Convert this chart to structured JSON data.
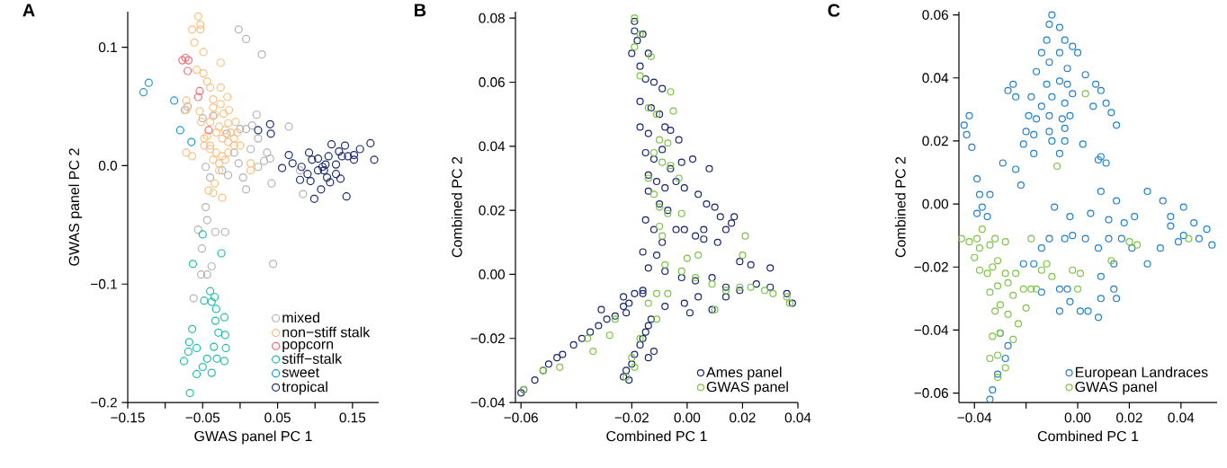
{
  "chart_data": [
    {
      "type": "scatter",
      "title": "A",
      "xlabel": "GWAS panel PC 1",
      "ylabel": "GWAS panel PC 2",
      "marker": "circle",
      "legend": "bottom right",
      "xlim": [
        -0.15,
        0.185
      ],
      "ylim": [
        -0.2,
        0.13
      ],
      "xticks": [
        {
          "value": -0.15,
          "label": "−0.15"
        },
        {
          "value": -0.1,
          "label": null
        },
        {
          "value": -0.05,
          "label": "−0.05"
        },
        {
          "value": 0,
          "label": null
        },
        {
          "value": 0.05,
          "label": "0.05"
        },
        {
          "value": 0.1,
          "label": null
        },
        {
          "value": 0.15,
          "label": "0.15"
        }
      ],
      "yticks": [
        {
          "value": -0.2,
          "label": "−0.2"
        },
        {
          "value": -0.1,
          "label": "−0.1"
        },
        {
          "value": 0,
          "label": "0.0"
        },
        {
          "value": 0.1,
          "label": "0.1"
        }
      ],
      "series": [
        {
          "name": "mixed",
          "color": "#b3b3b3",
          "x": [
            -0.002,
            0.008,
            0.029,
            -0.07,
            -0.074,
            -0.05,
            -0.036,
            0.022,
            0.0,
            0.008,
            0.016,
            -0.018,
            0.024,
            0.065,
            0.036,
            0.04,
            0.024,
            0.032,
            -0.046,
            -0.04,
            -0.024,
            -0.016,
            -0.002,
            0.004,
            0.008,
            0.014,
            0.042,
            0.084,
            -0.046,
            -0.044,
            -0.056,
            -0.033,
            -0.02,
            -0.051,
            -0.038,
            -0.044,
            -0.052,
            -0.062,
            0.044,
            -0.008,
            0.08
          ],
          "values": [
            0.115,
            0.107,
            0.094,
            0.05,
            0.047,
            0.04,
            0.042,
            0.043,
            0.031,
            0.031,
            0.034,
            0.027,
            0.023,
            0.033,
            0.011,
            0.006,
            -0.001,
            0.004,
            -0.001,
            -0.01,
            -0.004,
            -0.008,
            0.002,
            -0.01,
            -0.02,
            0.014,
            -0.015,
            -0.024,
            -0.035,
            -0.046,
            -0.054,
            -0.056,
            -0.056,
            -0.07,
            -0.085,
            -0.092,
            -0.092,
            -0.112,
            -0.083,
            0.011,
            -0.004
          ]
        },
        {
          "name": "non−stiff stalk",
          "color": "#fdbf80",
          "x": [
            -0.056,
            -0.053,
            -0.064,
            -0.053,
            -0.061,
            -0.049,
            -0.026,
            -0.058,
            -0.049,
            -0.04,
            -0.026,
            -0.017,
            -0.072,
            -0.036,
            -0.026,
            -0.015,
            -0.072,
            -0.054,
            -0.036,
            -0.034,
            -0.022,
            -0.052,
            -0.04,
            -0.028,
            -0.016,
            -0.006,
            -0.044,
            -0.032,
            -0.02,
            -0.012,
            -0.048,
            -0.04,
            -0.024,
            -0.016,
            -0.008,
            -0.072,
            -0.064,
            -0.048,
            -0.04,
            -0.032,
            -0.024,
            -0.016,
            -0.008,
            -0.036,
            -0.028,
            -0.02,
            0.014,
            0.014,
            -0.028,
            -0.034,
            -0.042,
            -0.036,
            -0.024,
            -0.044,
            0.0,
            -0.004
          ],
          "values": [
            0.126,
            0.119,
            0.115,
            0.115,
            0.104,
            0.096,
            0.087,
            0.081,
            0.078,
            0.066,
            0.066,
            0.058,
            0.055,
            0.056,
            0.052,
            0.047,
            0.047,
            0.046,
            0.049,
            0.043,
            0.044,
            0.037,
            0.037,
            0.033,
            0.036,
            0.037,
            0.025,
            0.028,
            0.03,
            0.028,
            0.023,
            0.017,
            0.023,
            0.02,
            0.023,
            0.011,
            0.008,
            0.017,
            0.014,
            0.011,
            0.008,
            0.011,
            0.017,
            0.005,
            0.002,
            0.005,
            0.002,
            -0.004,
            -0.004,
            -0.015,
            -0.021,
            -0.023,
            -0.027,
            0.071,
            0.017,
            0.028
          ]
        },
        {
          "name": "popcorn",
          "color": "#f46d75",
          "x": [
            -0.077,
            -0.073,
            -0.069,
            -0.07,
            -0.054,
            -0.056,
            -0.042
          ],
          "values": [
            0.089,
            0.091,
            0.089,
            0.08,
            0.063,
            0.058,
            0.03
          ]
        },
        {
          "name": "stiff−stalk",
          "color": "#1fbfae",
          "x": [
            -0.05,
            -0.025,
            -0.063,
            -0.04,
            -0.034,
            -0.048,
            -0.038,
            -0.032,
            -0.021,
            -0.033,
            -0.064,
            -0.029,
            -0.02,
            -0.068,
            -0.019,
            -0.035,
            -0.069,
            -0.058,
            -0.075,
            -0.044,
            -0.031,
            -0.021,
            -0.05,
            -0.058,
            -0.038,
            -0.067
          ],
          "values": [
            -0.058,
            -0.074,
            -0.083,
            -0.106,
            -0.111,
            -0.114,
            -0.115,
            -0.121,
            -0.128,
            -0.131,
            -0.138,
            -0.141,
            -0.143,
            -0.149,
            -0.154,
            -0.153,
            -0.157,
            -0.154,
            -0.165,
            -0.163,
            -0.163,
            -0.165,
            -0.17,
            -0.176,
            -0.175,
            -0.192
          ]
        },
        {
          "name": "sweet",
          "color": "#1a9ad6",
          "x": [
            -0.129,
            -0.122,
            -0.088,
            -0.08,
            -0.065
          ],
          "values": [
            0.062,
            0.07,
            0.055,
            0.03,
            0.02
          ]
        },
        {
          "name": "tropical",
          "color": "#1a2a72",
          "x": [
            0.024,
            0.04,
            0.041,
            0.056,
            0.065,
            0.07,
            0.08,
            0.082,
            0.092,
            0.094,
            0.096,
            0.099,
            0.104,
            0.108,
            0.112,
            0.114,
            0.116,
            0.118,
            0.12,
            0.122,
            0.128,
            0.132,
            0.134,
            0.136,
            0.14,
            0.142,
            0.144,
            0.152,
            0.16,
            0.174,
            0.179,
            0.09,
            0.104,
            0.11,
            0.128,
            0.152
          ],
          "values": [
            0.03,
            0.035,
            0.027,
            -0.002,
            0.009,
            0.002,
            -0.012,
            -0.001,
            0.011,
            -0.013,
            0.005,
            -0.028,
            0.006,
            -0.02,
            -0.004,
            0.001,
            -0.01,
            0.008,
            -0.014,
            0.018,
            0.001,
            0.012,
            -0.011,
            0.008,
            0.017,
            -0.026,
            0.008,
            0.005,
            0.014,
            0.019,
            0.005,
            -0.007,
            -0.004,
            -0.001,
            -0.007,
            0.009
          ]
        }
      ]
    },
    {
      "type": "scatter",
      "title": "B",
      "xlabel": "Combined PC 1",
      "ylabel": "Combined PC 2",
      "marker": "circle",
      "legend": "bottom right",
      "xlim": [
        -0.062,
        0.04
      ],
      "ylim": [
        -0.04,
        0.082
      ],
      "xticks": [
        {
          "value": -0.06,
          "label": "−0.06"
        },
        {
          "value": -0.04,
          "label": null
        },
        {
          "value": -0.02,
          "label": "−0.02"
        },
        {
          "value": 0,
          "label": "0.00"
        },
        {
          "value": 0.02,
          "label": "0.02"
        },
        {
          "value": 0.04,
          "label": "0.04"
        }
      ],
      "yticks": [
        {
          "value": -0.04,
          "label": "−0.04"
        },
        {
          "value": -0.02,
          "label": "−0.02"
        },
        {
          "value": 0,
          "label": "0.00"
        },
        {
          "value": 0.02,
          "label": "0.02"
        },
        {
          "value": 0.04,
          "label": "0.04"
        },
        {
          "value": 0.06,
          "label": "0.06"
        },
        {
          "value": 0.08,
          "label": "0.08"
        }
      ],
      "series": [
        {
          "name": "Ames panel",
          "color": "#14246e",
          "x": [
            -0.06,
            -0.059,
            -0.055,
            -0.052,
            -0.05,
            -0.047,
            -0.045,
            -0.041,
            -0.038,
            -0.035,
            -0.032,
            -0.029,
            -0.026,
            -0.023,
            -0.021,
            -0.019,
            -0.016,
            -0.031,
            -0.023,
            -0.022,
            -0.023,
            -0.022,
            -0.02,
            -0.019,
            -0.017,
            -0.016,
            -0.015,
            -0.014,
            -0.013,
            -0.012,
            -0.014,
            -0.021,
            -0.019,
            -0.019,
            -0.02,
            -0.018,
            -0.016,
            -0.017,
            -0.014,
            -0.015,
            -0.012,
            -0.009,
            -0.017,
            -0.013,
            -0.01,
            -0.008,
            -0.017,
            -0.014,
            -0.006,
            -0.003,
            -0.015,
            -0.012,
            -0.009,
            -0.006,
            -0.002,
            0.002,
            0.008,
            -0.014,
            -0.011,
            -0.008,
            -0.004,
            -0.001,
            -0.014,
            -0.01,
            -0.007,
            -0.015,
            -0.012,
            -0.009,
            -0.004,
            -0.001,
            0.003,
            0.006,
            0.004,
            0.007,
            0.01,
            0.012,
            0.016,
            0.017,
            0.014,
            0.011,
            0.006,
            -0.011,
            -0.016,
            -0.014,
            -0.016,
            -0.008,
            -0.002,
            0.003,
            0.009,
            0.014,
            0.019,
            0.025,
            0.03,
            0.036,
            0.038,
            0.019,
            0.023,
            0.03,
            0.009,
            -0.001,
            -0.008,
            0.001,
            0.004,
            0.014
          ],
          "values": [
            -0.037,
            -0.036,
            -0.033,
            -0.03,
            -0.028,
            -0.026,
            -0.025,
            -0.022,
            -0.02,
            -0.018,
            -0.016,
            -0.014,
            -0.013,
            -0.01,
            -0.009,
            -0.006,
            -0.006,
            -0.011,
            -0.007,
            -0.012,
            -0.032,
            -0.03,
            -0.028,
            -0.025,
            -0.022,
            -0.02,
            -0.018,
            -0.016,
            -0.014,
            -0.024,
            -0.026,
            -0.033,
            0.079,
            0.076,
            0.069,
            0.073,
            0.075,
            0.065,
            0.069,
            0.061,
            0.06,
            0.058,
            0.054,
            0.052,
            0.05,
            0.046,
            0.046,
            0.044,
            0.045,
            0.042,
            0.038,
            0.036,
            0.039,
            0.033,
            0.035,
            0.036,
            0.033,
            0.031,
            0.029,
            0.027,
            0.029,
            0.027,
            0.026,
            0.022,
            0.02,
            0.017,
            0.014,
            0.01,
            0.014,
            0.014,
            0.012,
            0.014,
            0.025,
            0.022,
            0.021,
            0.018,
            0.016,
            0.018,
            0.014,
            0.01,
            0.011,
            0.006,
            0.007,
            0.002,
            -0.005,
            0.001,
            -0.001,
            -0.002,
            -0.001,
            -0.004,
            -0.005,
            -0.003,
            -0.004,
            -0.006,
            -0.009,
            0.004,
            0.003,
            0.002,
            -0.011,
            -0.009,
            -0.01,
            -0.012,
            -0.007,
            -0.007
          ]
        },
        {
          "name": "GWAS panel",
          "color": "#7cc444",
          "x": [
            -0.019,
            -0.019,
            -0.017,
            -0.013,
            -0.017,
            -0.006,
            -0.005,
            -0.014,
            -0.011,
            -0.01,
            -0.007,
            -0.012,
            -0.009,
            -0.006,
            -0.003,
            -0.014,
            -0.012,
            -0.01,
            -0.007,
            -0.01,
            -0.009,
            -0.002,
            0.021,
            0.02,
            -0.008,
            -0.002,
            0.003,
            0.009,
            0.014,
            0.019,
            0.023,
            0.028,
            0.031,
            0.036,
            0.037,
            0.01,
            -0.011,
            -0.014,
            -0.007,
            -0.011,
            -0.017,
            -0.02,
            -0.022,
            -0.019,
            -0.026,
            -0.028,
            -0.036,
            -0.034,
            -0.046,
            -0.052,
            -0.059,
            0.004,
            0.0
          ],
          "values": [
            0.08,
            0.071,
            0.075,
            0.068,
            0.062,
            0.057,
            0.051,
            0.052,
            0.05,
            0.042,
            0.041,
            0.038,
            0.035,
            0.034,
            0.03,
            0.03,
            0.025,
            0.021,
            0.019,
            0.015,
            0.012,
            0.019,
            0.012,
            0.006,
            0.003,
            0.001,
            -0.001,
            -0.003,
            -0.005,
            -0.004,
            -0.004,
            -0.005,
            -0.006,
            -0.007,
            -0.009,
            -0.011,
            -0.006,
            -0.009,
            -0.006,
            -0.014,
            -0.02,
            -0.026,
            -0.032,
            -0.029,
            -0.014,
            -0.019,
            -0.02,
            -0.024,
            -0.029,
            -0.03,
            -0.036,
            0.006,
            0.005
          ]
        }
      ]
    },
    {
      "type": "scatter",
      "title": "C",
      "xlabel": "Combined PC 1",
      "ylabel": "Combined PC 2",
      "marker": "circle",
      "legend": "bottom right",
      "xlim": [
        -0.046,
        0.054
      ],
      "ylim": [
        -0.063,
        0.061
      ],
      "xticks": [
        {
          "value": -0.04,
          "label": "−0.04"
        },
        {
          "value": -0.02,
          "label": null
        },
        {
          "value": 0,
          "label": "0.00"
        },
        {
          "value": 0.02,
          "label": "0.02"
        },
        {
          "value": 0.04,
          "label": "0.04"
        }
      ],
      "yticks": [
        {
          "value": -0.06,
          "label": "−0.06"
        },
        {
          "value": -0.04,
          "label": "−0.04"
        },
        {
          "value": -0.02,
          "label": "−0.02"
        },
        {
          "value": 0,
          "label": "0.00"
        },
        {
          "value": 0.02,
          "label": "0.02"
        },
        {
          "value": 0.04,
          "label": "0.04"
        },
        {
          "value": 0.06,
          "label": "0.06"
        }
      ],
      "series": [
        {
          "name": "European Landraces",
          "color": "#1f7fcf",
          "x": [
            -0.01,
            -0.011,
            -0.012,
            -0.007,
            -0.005,
            -0.002,
            -0.014,
            -0.011,
            -0.007,
            -0.004,
            0.0,
            -0.016,
            -0.012,
            -0.007,
            -0.004,
            -0.018,
            -0.014,
            -0.01,
            -0.005,
            -0.002,
            -0.019,
            -0.016,
            -0.011,
            -0.006,
            -0.003,
            -0.02,
            -0.017,
            -0.011,
            -0.005,
            -0.021,
            -0.017,
            -0.01,
            -0.007,
            -0.005,
            -0.027,
            -0.025,
            -0.024,
            0.003,
            0.007,
            0.009,
            0.011,
            0.013,
            0.015,
            0.006,
            0.008,
            0.009,
            0.011,
            0.002,
            -0.044,
            -0.042,
            -0.043,
            -0.041,
            -0.029,
            -0.024,
            -0.022,
            -0.039,
            -0.038,
            -0.037,
            -0.034,
            -0.039,
            -0.035,
            -0.009,
            -0.003,
            0.005,
            0.009,
            0.012,
            0.015,
            0.018,
            0.022,
            0.027,
            0.033,
            0.036,
            0.041,
            0.045,
            0.05,
            0.052,
            0.047,
            0.041,
            0.036,
            0.039,
            0.032,
            0.027,
            0.021,
            0.017,
            0.012,
            0.008,
            0.003,
            -0.002,
            -0.005,
            -0.011,
            -0.014,
            -0.017,
            -0.021,
            -0.014,
            -0.007,
            -0.004,
            -0.003,
            -0.007,
            0.001,
            0.004,
            0.008,
            0.009,
            0.014,
            0.015,
            0.014,
            0.009,
            -0.03,
            -0.027,
            -0.028,
            -0.031,
            -0.033,
            -0.034
          ],
          "values": [
            0.06,
            0.057,
            0.052,
            0.056,
            0.052,
            0.05,
            0.048,
            0.045,
            0.048,
            0.043,
            0.048,
            0.042,
            0.038,
            0.039,
            0.038,
            0.034,
            0.031,
            0.034,
            0.032,
            0.035,
            0.028,
            0.027,
            0.028,
            0.027,
            0.028,
            0.023,
            0.022,
            0.023,
            0.024,
            0.019,
            0.016,
            0.02,
            0.016,
            0.02,
            0.036,
            0.038,
            0.034,
            0.041,
            0.038,
            0.036,
            0.032,
            0.029,
            0.025,
            0.031,
            0.014,
            0.015,
            0.013,
            0.019,
            0.025,
            0.028,
            0.022,
            0.018,
            0.013,
            0.011,
            0.006,
            0.008,
            0.003,
            -0.001,
            0.003,
            -0.003,
            -0.004,
            -0.001,
            -0.004,
            -0.003,
            0.004,
            -0.005,
            0.001,
            -0.006,
            -0.004,
            0.004,
            0.001,
            -0.004,
            -0.001,
            -0.006,
            -0.008,
            -0.013,
            -0.011,
            -0.01,
            -0.007,
            -0.012,
            -0.014,
            -0.019,
            -0.014,
            -0.011,
            -0.011,
            -0.014,
            -0.011,
            -0.01,
            -0.011,
            -0.011,
            -0.014,
            -0.019,
            -0.019,
            -0.028,
            -0.027,
            -0.027,
            -0.031,
            -0.034,
            -0.034,
            -0.034,
            -0.036,
            -0.03,
            -0.027,
            -0.03,
            -0.019,
            -0.023,
            -0.041,
            -0.045,
            -0.049,
            -0.054,
            -0.059,
            -0.062
          ]
        },
        {
          "name": "GWAS panel",
          "color": "#7cc444",
          "x": [
            -0.045,
            -0.042,
            -0.039,
            -0.037,
            -0.038,
            -0.04,
            -0.034,
            -0.032,
            -0.028,
            -0.038,
            -0.035,
            -0.033,
            -0.031,
            -0.028,
            -0.034,
            -0.031,
            -0.027,
            -0.024,
            -0.021,
            -0.018,
            -0.016,
            -0.03,
            -0.025,
            -0.02,
            -0.032,
            -0.027,
            -0.023,
            -0.033,
            -0.03,
            -0.025,
            -0.034,
            -0.031,
            -0.028,
            -0.031,
            -0.018,
            -0.014,
            -0.012,
            -0.01,
            -0.002,
            0.001,
            0.0,
            0.013,
            0.02,
            0.023,
            0.043,
            0.003,
            -0.008
          ],
          "values": [
            -0.011,
            -0.012,
            -0.011,
            -0.008,
            -0.014,
            -0.017,
            -0.013,
            -0.011,
            -0.012,
            -0.021,
            -0.022,
            -0.02,
            -0.018,
            -0.022,
            -0.028,
            -0.026,
            -0.025,
            -0.022,
            -0.027,
            -0.027,
            -0.027,
            -0.032,
            -0.029,
            -0.033,
            -0.034,
            -0.035,
            -0.038,
            -0.042,
            -0.041,
            -0.043,
            -0.049,
            -0.048,
            -0.052,
            -0.055,
            -0.011,
            -0.021,
            -0.019,
            -0.023,
            -0.021,
            -0.022,
            -0.027,
            -0.018,
            -0.012,
            -0.013,
            -0.011,
            0.035,
            0.012
          ]
        }
      ]
    }
  ]
}
